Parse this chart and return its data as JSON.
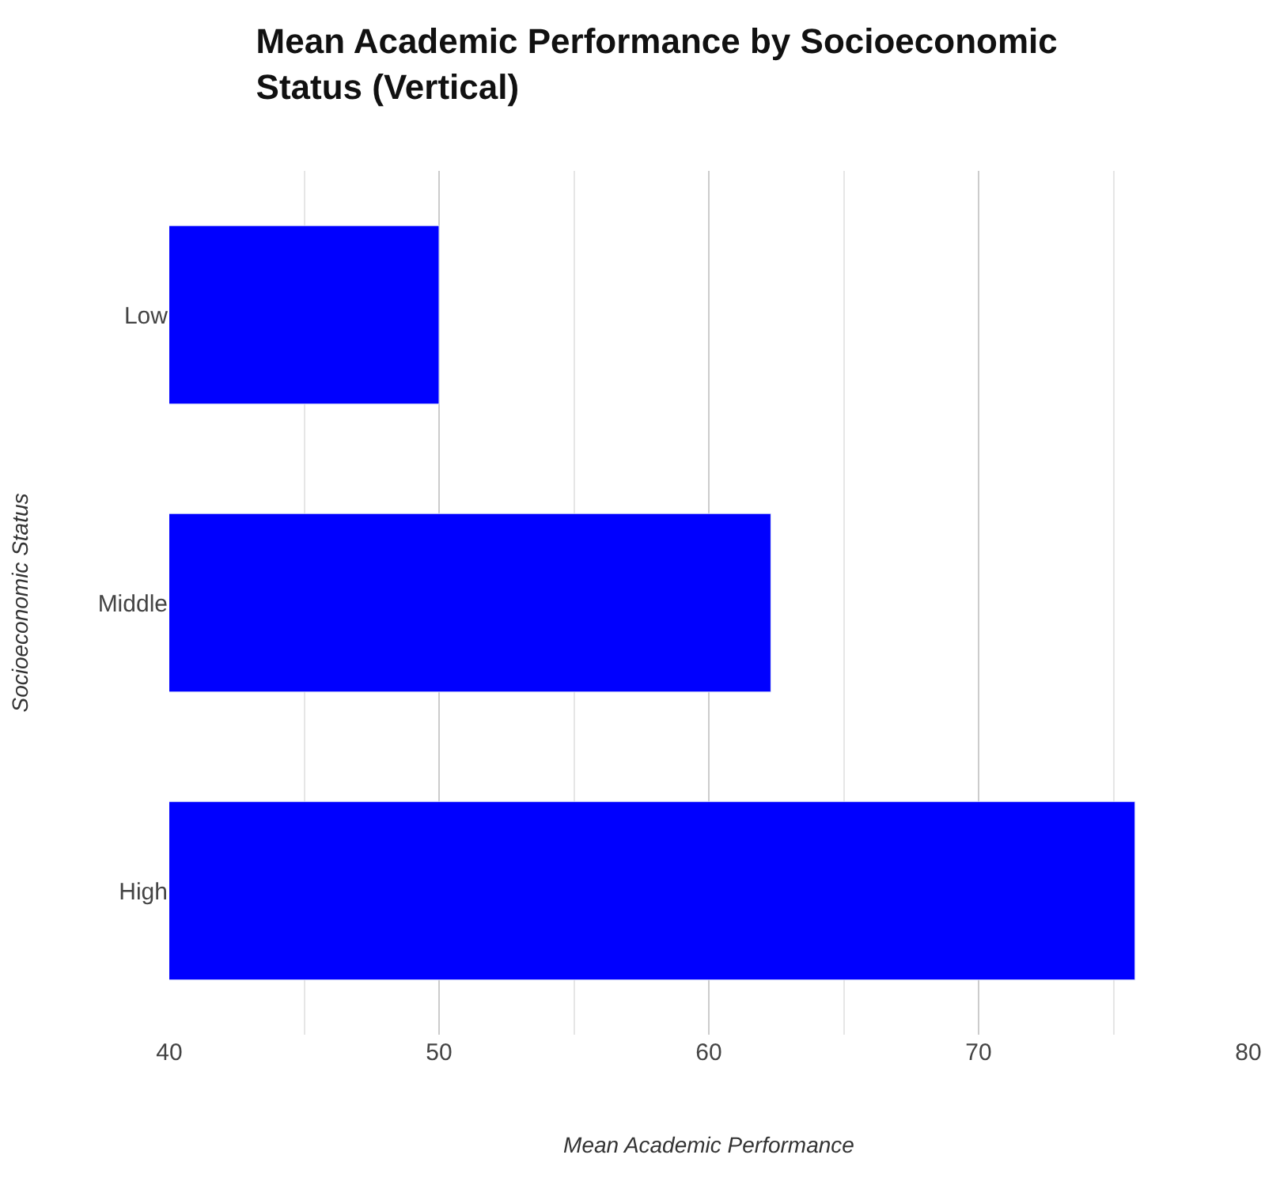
{
  "chart_data": {
    "type": "bar",
    "title": "Mean Academic Performance by Socioeconomic Status (Vertical)",
    "xlabel": "Mean Academic Performance",
    "ylabel": "Socioeconomic Status",
    "orientation": "horizontal",
    "categories": [
      "Low",
      "Middle",
      "High"
    ],
    "values": [
      50,
      62.3,
      75.8
    ],
    "color": "#0000ff",
    "xlim": [
      40,
      80
    ],
    "xticks": [
      40,
      {
        "value": 45,
        "label": null
      },
      50,
      {
        "value": 55,
        "label": null
      },
      60,
      {
        "value": 65,
        "label": null
      },
      70,
      {
        "value": 75,
        "label": null
      },
      80
    ],
    "grid": "x"
  }
}
